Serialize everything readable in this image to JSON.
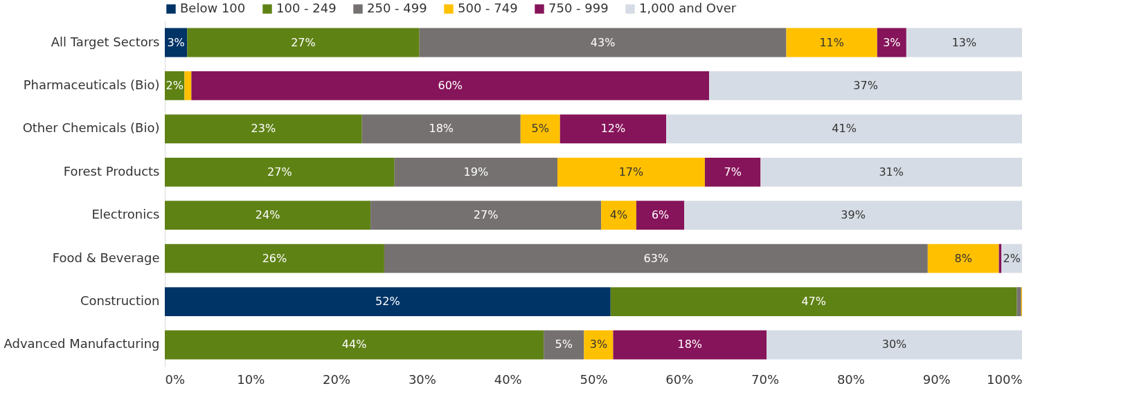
{
  "chart_data": {
    "type": "bar",
    "orientation": "horizontal",
    "stacked": true,
    "legend": "top",
    "grid": false,
    "categories": [
      "All Target Sectors",
      "Pharmaceuticals (Bio)",
      "Other Chemicals (Bio)",
      "Forest Products",
      "Electronics",
      "Food & Beverage",
      "Construction",
      "Advanced Manufacturing"
    ],
    "xlim": [
      0,
      100
    ],
    "xticks": [
      {
        "value": 0,
        "label": "0%"
      },
      {
        "value": 10,
        "label": "10%"
      },
      {
        "value": 20,
        "label": "20%"
      },
      {
        "value": 30,
        "label": "30%"
      },
      {
        "value": 40,
        "label": "40%"
      },
      {
        "value": 50,
        "label": "50%"
      },
      {
        "value": 60,
        "label": "60%"
      },
      {
        "value": 70,
        "label": "70%"
      },
      {
        "value": 80,
        "label": "80%"
      },
      {
        "value": 90,
        "label": "90%"
      },
      {
        "value": 100,
        "label": "100%"
      }
    ],
    "series": [
      {
        "name": "Below 100",
        "color": "#003366",
        "values": [
          2.6,
          0,
          0,
          0,
          0,
          0,
          52.0,
          0
        ],
        "value_labels": [
          "3%",
          null,
          null,
          null,
          null,
          null,
          "52%",
          null
        ]
      },
      {
        "name": "100 - 249",
        "color": "#5f8215",
        "values": [
          27.1,
          2.3,
          23.0,
          26.8,
          24.0,
          25.6,
          47.4,
          44.2
        ],
        "value_labels": [
          "27%",
          "2%",
          "23%",
          "27%",
          "24%",
          "26%",
          "47%",
          "44%"
        ]
      },
      {
        "name": "250 - 499",
        "color": "#767171",
        "values": [
          42.8,
          0,
          18.5,
          19.0,
          26.9,
          63.4,
          0.5,
          4.7
        ],
        "value_labels": [
          "43%",
          null,
          "18%",
          "19%",
          "27%",
          "63%",
          null,
          "5%"
        ]
      },
      {
        "name": "500 - 749",
        "color": "#ffc000",
        "values": [
          10.6,
          0.8,
          4.6,
          17.2,
          4.1,
          8.3,
          0.1,
          3.4
        ],
        "value_labels": [
          "11%",
          null,
          "5%",
          "17%",
          "4%",
          "8%",
          null,
          "3%"
        ]
      },
      {
        "name": "750 - 999",
        "color": "#86145a",
        "values": [
          3.4,
          60.4,
          12.4,
          6.5,
          5.6,
          0.3,
          0,
          17.9
        ],
        "value_labels": [
          "3%",
          "60%",
          "12%",
          "7%",
          "6%",
          null,
          null,
          "18%"
        ]
      },
      {
        "name": "1,000 and Over",
        "color": "#d6dce5",
        "values": [
          13.5,
          36.5,
          41.5,
          30.5,
          39.4,
          2.4,
          0,
          29.8
        ],
        "value_labels": [
          "13%",
          "37%",
          "41%",
          "31%",
          "39%",
          "2%",
          null,
          "30%"
        ]
      }
    ]
  }
}
